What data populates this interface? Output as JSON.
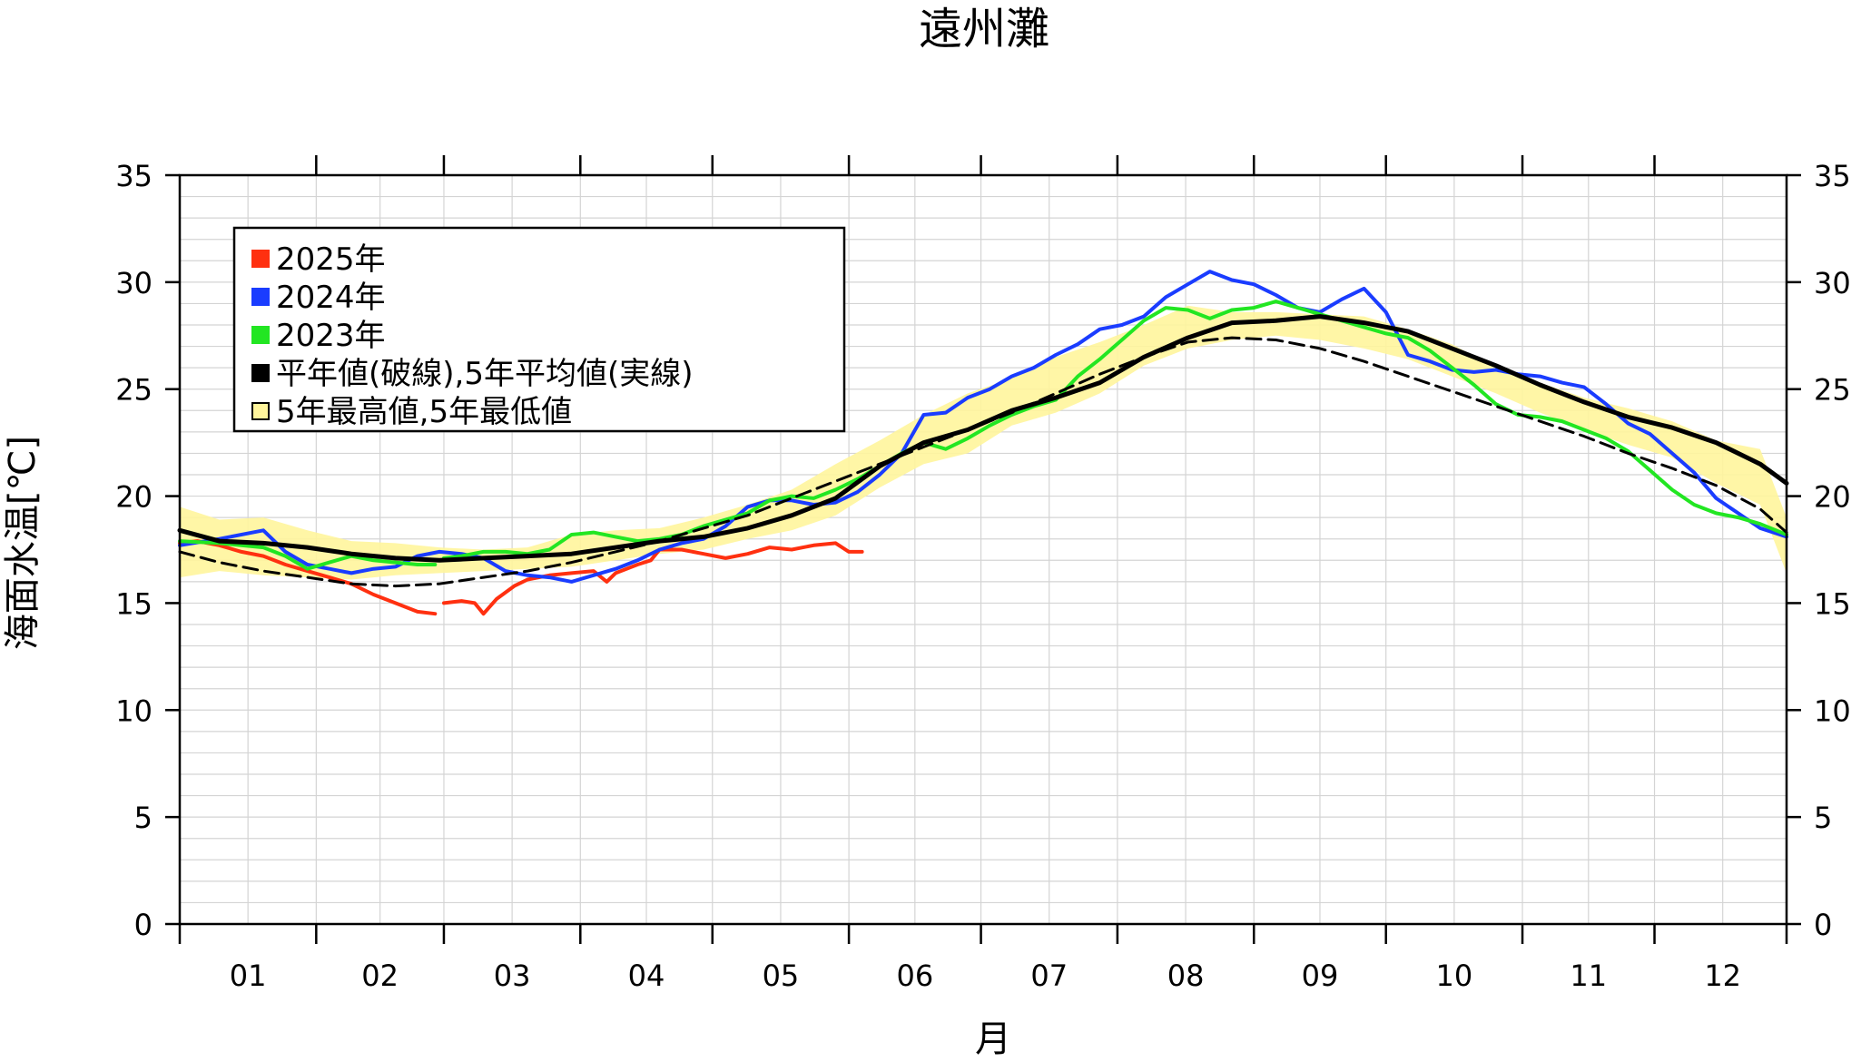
{
  "chart_data": {
    "type": "line",
    "title": "遠州灘",
    "xlabel": "月",
    "ylabel": "海面水温[℃]",
    "x_unit": "day_of_year",
    "xlim": [
      1,
      366
    ],
    "ylim": [
      0,
      35
    ],
    "y_ticks": [
      0,
      5,
      10,
      15,
      20,
      25,
      30,
      35
    ],
    "y_tick_labels": [
      "0",
      "5",
      "10",
      "15",
      "20",
      "25",
      "30",
      "35"
    ],
    "x_tick_labels": [
      "01",
      "02",
      "03",
      "04",
      "05",
      "06",
      "07",
      "08",
      "09",
      "10",
      "11",
      "12"
    ],
    "grid": true,
    "legend_position": "top-left",
    "legend": [
      {
        "label": "2025年",
        "color": "#ff3010",
        "swatch": "filled"
      },
      {
        "label": "2024年",
        "color": "#1a3cff",
        "swatch": "filled"
      },
      {
        "label": "2023年",
        "color": "#22e622",
        "swatch": "filled"
      },
      {
        "label": "平年値(破線),5年平均値(実線)",
        "color": "#000000",
        "swatch": "filled"
      },
      {
        "label": "5年最高値,5年最低値",
        "color": "#fff59c",
        "swatch": "outlined"
      }
    ],
    "series": [
      {
        "name": "2025年",
        "color": "#ff3010",
        "style": "solid",
        "segments": [
          {
            "x": [
              1,
              5,
              10,
              15,
              20,
              25,
              30,
              35,
              40,
              45,
              50,
              55,
              59
            ],
            "y": [
              17.8,
              17.9,
              17.7,
              17.4,
              17.2,
              16.8,
              16.5,
              16.2,
              15.9,
              15.4,
              15.0,
              14.6,
              14.5
            ]
          },
          {
            "x": [
              61,
              65,
              68,
              70,
              73,
              77,
              80,
              85,
              90,
              95,
              98,
              100,
              105,
              108,
              110,
              115,
              120,
              125,
              130,
              135,
              140,
              145,
              150,
              153,
              156
            ],
            "y": [
              15.0,
              15.1,
              15.0,
              14.5,
              15.2,
              15.8,
              16.1,
              16.3,
              16.4,
              16.5,
              16.0,
              16.4,
              16.8,
              17.0,
              17.5,
              17.5,
              17.3,
              17.1,
              17.3,
              17.6,
              17.5,
              17.7,
              17.8,
              17.4,
              17.4
            ]
          }
        ]
      },
      {
        "name": "2024年",
        "color": "#1a3cff",
        "style": "solid",
        "segments": [
          {
            "x": [
              1,
              10,
              20,
              25,
              30,
              35,
              40,
              45,
              50,
              55,
              60,
              65,
              70,
              75,
              80,
              85,
              90,
              95,
              100,
              105,
              110,
              115,
              120,
              125,
              130,
              135,
              140,
              145,
              150,
              155,
              160,
              165,
              170,
              175,
              180,
              185,
              190,
              195,
              200,
              205,
              210,
              215,
              220,
              225,
              230,
              235,
              240,
              245,
              250,
              255,
              260,
              265,
              270,
              275,
              280,
              285,
              290,
              295,
              300,
              305,
              310,
              315,
              320,
              325,
              330,
              335,
              340,
              345,
              350,
              355,
              360,
              366
            ],
            "y": [
              17.7,
              18.0,
              18.4,
              17.4,
              16.8,
              16.6,
              16.4,
              16.6,
              16.7,
              17.2,
              17.4,
              17.3,
              17.1,
              16.5,
              16.3,
              16.2,
              16.0,
              16.3,
              16.6,
              17.0,
              17.5,
              17.8,
              18.0,
              18.6,
              19.5,
              19.8,
              19.8,
              19.6,
              19.7,
              20.2,
              21.0,
              22.0,
              23.8,
              23.9,
              24.6,
              25.0,
              25.6,
              26.0,
              26.6,
              27.1,
              27.8,
              28.0,
              28.4,
              29.3,
              29.9,
              30.5,
              30.1,
              29.9,
              29.4,
              28.8,
              28.6,
              29.2,
              29.7,
              28.6,
              26.6,
              26.3,
              25.9,
              25.8,
              25.9,
              25.7,
              25.6,
              25.3,
              25.1,
              24.3,
              23.4,
              22.9,
              22.0,
              21.1,
              19.9,
              19.2,
              18.5,
              18.1
            ]
          }
        ]
      },
      {
        "name": "2023年",
        "color": "#22e622",
        "style": "solid",
        "segments": [
          {
            "x": [
              1,
              10,
              20,
              25,
              30,
              35,
              40,
              45,
              50,
              55,
              59
            ],
            "y": [
              17.9,
              17.8,
              17.6,
              17.2,
              16.6,
              16.9,
              17.2,
              17.0,
              16.9,
              16.8,
              16.8
            ]
          },
          {
            "x": [
              61,
              65,
              70,
              75,
              80,
              85,
              90,
              95,
              100,
              105,
              110,
              115,
              120,
              125,
              130,
              135,
              140,
              145,
              150,
              155,
              160,
              165,
              170,
              175,
              180,
              185,
              190,
              195,
              200,
              205,
              210,
              215,
              220,
              225,
              230,
              235,
              240,
              245,
              250,
              255,
              260,
              265,
              270,
              275,
              280,
              285,
              290,
              295,
              300,
              305,
              310,
              315,
              320,
              325,
              330,
              335,
              340,
              345,
              350,
              355,
              360,
              366
            ],
            "y": [
              17.1,
              17.2,
              17.4,
              17.4,
              17.3,
              17.5,
              18.2,
              18.3,
              18.1,
              17.9,
              18.0,
              18.2,
              18.6,
              18.9,
              19.2,
              19.8,
              20.0,
              19.9,
              20.3,
              20.8,
              21.4,
              22.0,
              22.5,
              22.2,
              22.7,
              23.3,
              23.8,
              24.2,
              24.5,
              25.6,
              26.4,
              27.3,
              28.2,
              28.8,
              28.7,
              28.3,
              28.7,
              28.8,
              29.1,
              28.8,
              28.5,
              28.2,
              27.9,
              27.6,
              27.4,
              26.8,
              26.0,
              25.2,
              24.3,
              23.8,
              23.7,
              23.5,
              23.1,
              22.7,
              22.1,
              21.2,
              20.3,
              19.6,
              19.2,
              19.0,
              18.7,
              18.2
            ]
          }
        ]
      },
      {
        "name": "",
        "color": "#000000",
        "style": "solid",
        "x": [
          1,
          10,
          20,
          30,
          40,
          50,
          60,
          70,
          80,
          90,
          100,
          110,
          120,
          130,
          140,
          150,
          160,
          170,
          180,
          190,
          200,
          210,
          220,
          230,
          240,
          250,
          260,
          270,
          280,
          290,
          300,
          310,
          320,
          330,
          340,
          350,
          360,
          366
        ],
        "y": [
          18.4,
          17.9,
          17.8,
          17.6,
          17.3,
          17.1,
          17.0,
          17.1,
          17.2,
          17.3,
          17.6,
          17.9,
          18.1,
          18.5,
          19.1,
          19.9,
          21.4,
          22.5,
          23.1,
          24.0,
          24.6,
          25.3,
          26.5,
          27.4,
          28.1,
          28.2,
          28.4,
          28.1,
          27.7,
          26.9,
          26.1,
          25.2,
          24.4,
          23.7,
          23.2,
          22.5,
          21.5,
          20.6
        ]
      },
      {
        "name": "",
        "color": "#000000",
        "style": "dashed",
        "x": [
          1,
          10,
          20,
          30,
          40,
          50,
          60,
          70,
          80,
          90,
          100,
          110,
          120,
          130,
          140,
          150,
          160,
          170,
          180,
          190,
          200,
          210,
          220,
          230,
          240,
          250,
          260,
          270,
          280,
          290,
          300,
          310,
          320,
          330,
          340,
          350,
          360,
          366
        ],
        "y": [
          17.4,
          16.9,
          16.5,
          16.2,
          15.9,
          15.8,
          15.9,
          16.2,
          16.5,
          16.9,
          17.4,
          17.9,
          18.5,
          19.1,
          19.9,
          20.7,
          21.5,
          22.3,
          23.1,
          23.9,
          24.8,
          25.7,
          26.5,
          27.2,
          27.4,
          27.3,
          26.9,
          26.3,
          25.6,
          24.9,
          24.2,
          23.5,
          22.8,
          22.0,
          21.3,
          20.5,
          19.4,
          18.3
        ]
      }
    ],
    "band": {
      "name": "",
      "color": "#fff59c",
      "x": [
        1,
        10,
        20,
        30,
        40,
        50,
        60,
        70,
        80,
        90,
        100,
        110,
        120,
        130,
        140,
        150,
        160,
        170,
        180,
        190,
        200,
        210,
        220,
        230,
        240,
        250,
        260,
        270,
        280,
        290,
        300,
        310,
        320,
        330,
        340,
        350,
        360,
        366
      ],
      "upper": [
        19.5,
        18.9,
        19.0,
        18.4,
        17.9,
        17.8,
        17.6,
        17.5,
        17.6,
        18.2,
        18.4,
        18.5,
        19.0,
        19.6,
        20.3,
        21.5,
        22.6,
        23.8,
        24.8,
        25.5,
        26.5,
        27.2,
        28.0,
        28.9,
        28.6,
        28.6,
        28.5,
        28.4,
        27.8,
        27.1,
        26.0,
        25.3,
        24.6,
        24.1,
        23.5,
        22.6,
        22.2,
        19.0
      ],
      "lower": [
        16.2,
        16.5,
        16.3,
        16.2,
        16.1,
        16.3,
        16.4,
        16.5,
        16.6,
        16.7,
        17.0,
        17.3,
        17.5,
        18.0,
        18.4,
        19.1,
        20.4,
        21.5,
        22.0,
        23.3,
        23.9,
        24.8,
        26.1,
        26.9,
        27.3,
        27.5,
        27.3,
        26.9,
        26.4,
        25.6,
        24.8,
        23.9,
        23.1,
        22.4,
        21.8,
        20.6,
        19.6,
        16.4
      ]
    }
  }
}
